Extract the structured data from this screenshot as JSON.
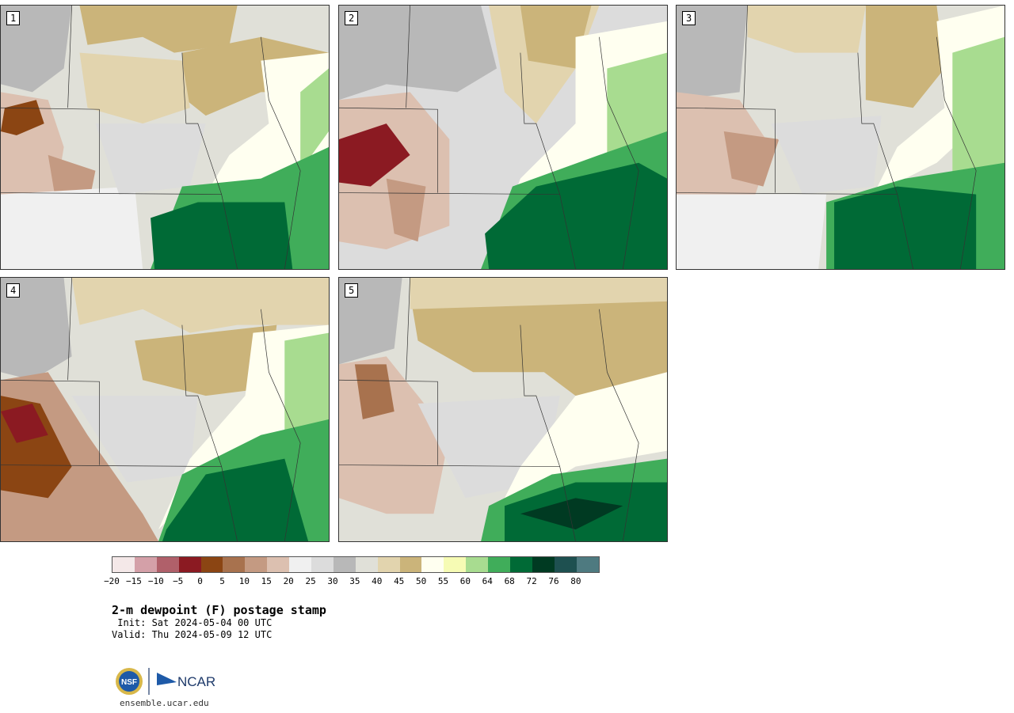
{
  "figure": {
    "title": "2-m dewpoint (F) postage stamp",
    "init": " Init: Sat 2024-05-04 00 UTC",
    "valid": "Valid: Thu 2024-05-09 12 UTC"
  },
  "panels": [
    {
      "label": "1"
    },
    {
      "label": "2"
    },
    {
      "label": "3"
    },
    {
      "label": "4"
    },
    {
      "label": "5"
    }
  ],
  "colorbar": {
    "colors": [
      "#f4e8e8",
      "#d4a0a8",
      "#b0606a",
      "#8b1a22",
      "#8b4513",
      "#a8724e",
      "#c49a82",
      "#dcc0b0",
      "#f0f0f0",
      "#dcdcdc",
      "#b8b8b8",
      "#e0e0d8",
      "#e2d4ae",
      "#cbb47a",
      "#fffff0",
      "#f6fbb4",
      "#a8dc90",
      "#40ad5a",
      "#006a36",
      "#003a22",
      "#1e5050",
      "#4e7a80"
    ],
    "ticks": [
      "−20",
      "−15",
      "−10",
      "−5",
      "0",
      "5",
      "10",
      "15",
      "20",
      "25",
      "30",
      "35",
      "40",
      "45",
      "50",
      "55",
      "60",
      "64",
      "68",
      "72",
      "76",
      "80"
    ]
  },
  "branding": {
    "url": "ensemble.ucar.edu",
    "logo_text": "NCAR",
    "seal_text": "NSF"
  }
}
